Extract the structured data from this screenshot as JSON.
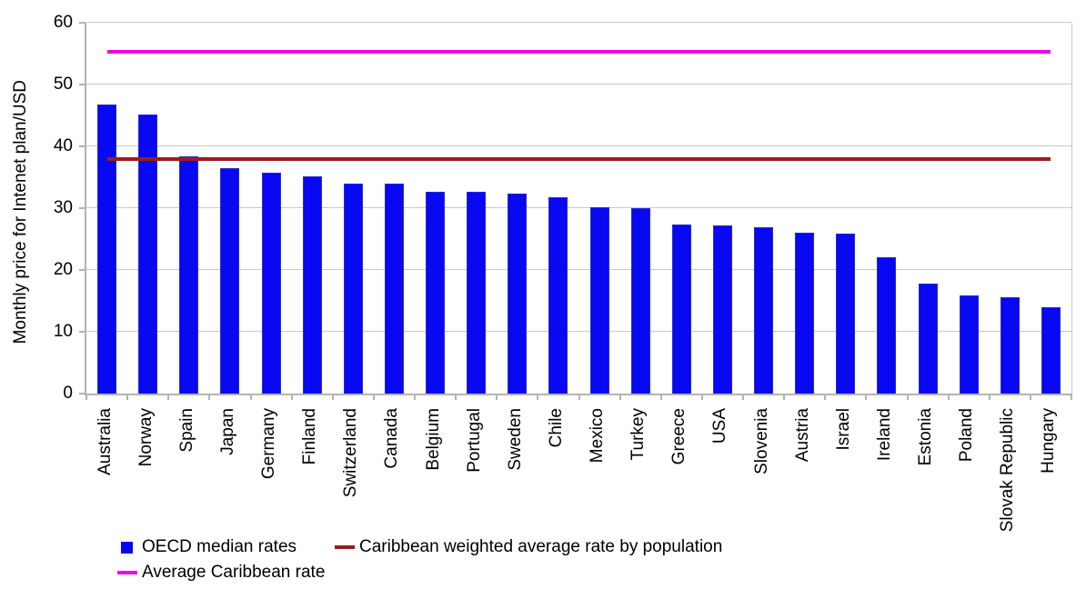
{
  "chart_data": {
    "type": "bar",
    "title": "",
    "xlabel": "",
    "ylabel": "Monthly price for Intenet plan/USD",
    "ylim": [
      0,
      60
    ],
    "yticks": [
      0,
      10,
      20,
      30,
      40,
      50,
      60
    ],
    "grid": true,
    "legend_position": "bottom-left",
    "categories": [
      "Australia",
      "Norway",
      "Spain",
      "Japan",
      "Germany",
      "Finland",
      "Switzerland",
      "Canada",
      "Belgium",
      "Portugal",
      "Sweden",
      "Chile",
      "Mexico",
      "Turkey",
      "Greece",
      "USA",
      "Slovenia",
      "Austria",
      "Israel",
      "Ireland",
      "Estonia",
      "Poland",
      "Slovak Republic",
      "Hungary"
    ],
    "series": [
      {
        "name": "OECD median rates",
        "type": "bar",
        "color": "#0808f2",
        "values": [
          46.7,
          45.1,
          38.4,
          36.4,
          35.8,
          35.2,
          33.9,
          33.9,
          32.7,
          32.6,
          32.3,
          31.8,
          30.2,
          30.0,
          27.4,
          27.2,
          26.9,
          26.0,
          25.9,
          22.0,
          17.8,
          15.9,
          15.6,
          13.9
        ]
      },
      {
        "name": "Caribbean weighted average rate by population",
        "type": "line",
        "color": "#9c1c1c",
        "value": 38.0
      },
      {
        "name": "Average Caribbean rate",
        "type": "line",
        "color": "#ee00ee",
        "value": 55.3
      }
    ]
  }
}
